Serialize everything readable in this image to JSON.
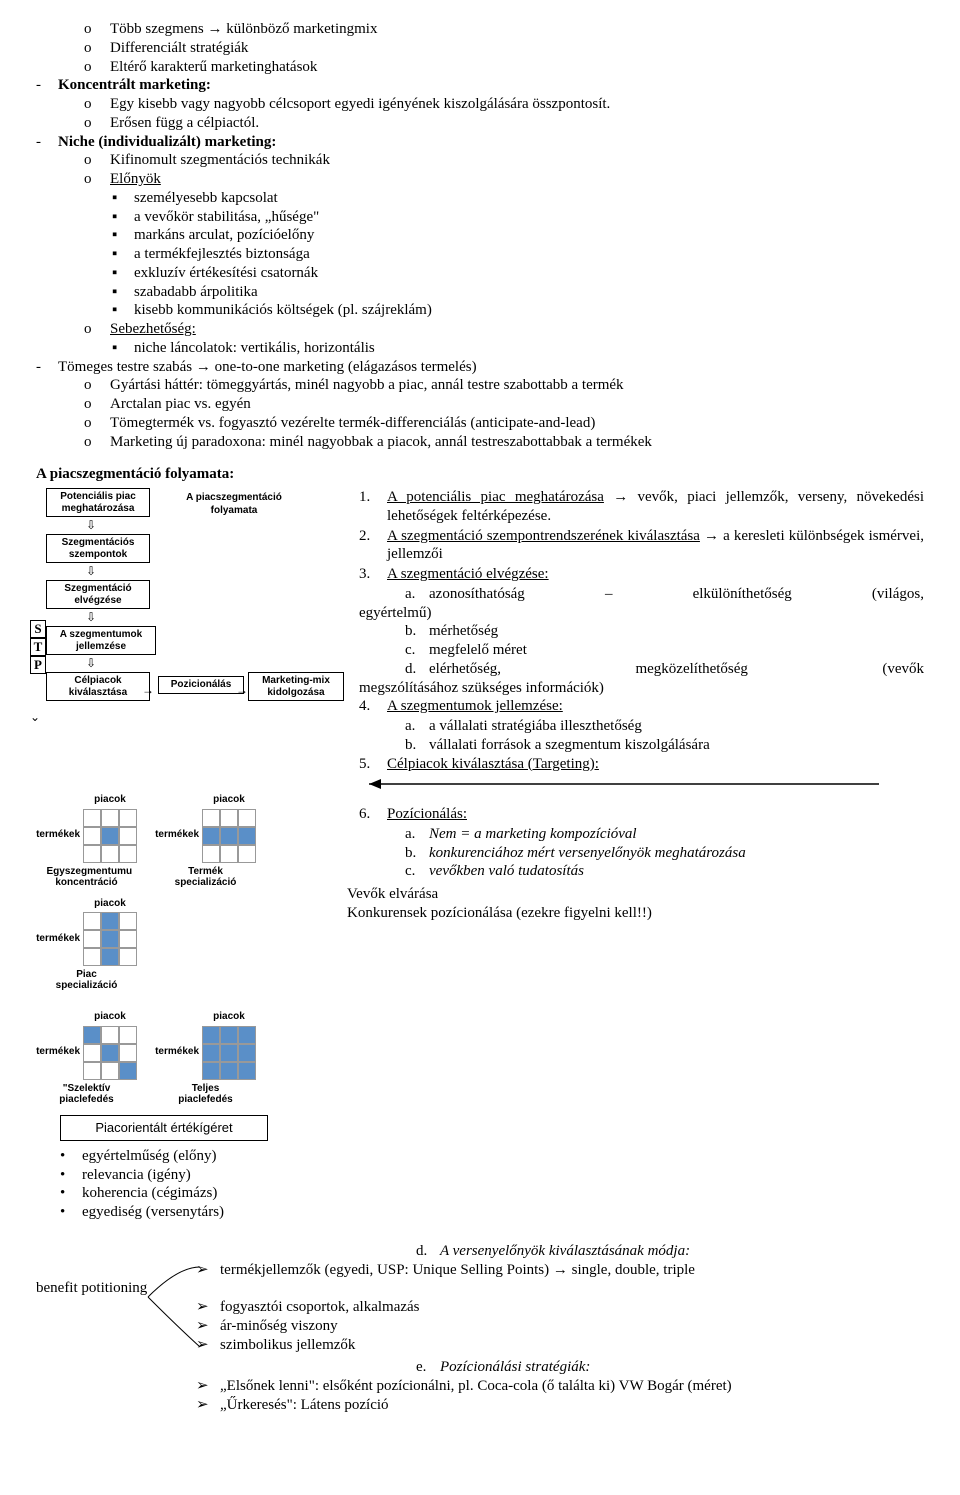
{
  "top": {
    "bullets": [
      "Több szegmens → különböző marketingmix",
      "Differenciált stratégiák",
      "Eltérő karakterű marketinghatások"
    ],
    "koncentralt": {
      "title": "Koncentrált marketing:",
      "items": [
        "Egy kisebb vagy nagyobb célcsoport egyedi igényének kiszolgálására összpontosít.",
        "Erősen függ a célpiactól."
      ]
    },
    "niche": {
      "title": "Niche (individualizált) marketing:",
      "items": [
        "Kifinomult szegmentációs technikák",
        "Előnyök"
      ],
      "elonyok": [
        "személyesebb kapcsolat",
        "a vevőkör stabilitása, „hűsége\"",
        "markáns arculat, pozícióelőny",
        "a termékfejlesztés biztonsága",
        "exkluzív értékesítési csatornák",
        "szabadabb árpolitika",
        "kisebb kommunikációs költségek (pl. szájreklám)"
      ],
      "sebez_label": "Sebezhetőség:",
      "sebez_item": "niche láncolatok: vertikális, horizontális"
    },
    "tomeges": {
      "title": "Tömeges testre szabás → one-to-one marketing (elágazásos termelés)",
      "items": [
        "Gyártási háttér: tömeggyártás, minél nagyobb a piac, annál testre szabottabb a termék",
        "Arctalan piac vs. egyén",
        "Tömegtermék vs. fogyasztó vezérelte termék-differenciálás (anticipate-and-lead)",
        "Marketing új paradoxona: minél nagyobbak a piacok, annál testreszabottabbak a termékek"
      ]
    }
  },
  "section_title": "A piacszegmentáció folyamata:",
  "flow": {
    "title": "A piacszegmentáció folyamata",
    "boxes": {
      "b1": "Potenciális piac meghatározása",
      "b2": "Szegmentációs szempontok",
      "b3": "Szegmentáció elvégzése",
      "b4": "A szegmentumok jellemzése",
      "b5": "Célpiacok kiválasztása",
      "b6": "Pozicionálás",
      "b7": "Marketing-mix kidolgozása"
    },
    "stp": {
      "s": "S",
      "t": "T",
      "p": "P"
    }
  },
  "matrices": {
    "top": "piacok",
    "left": "termékek",
    "colors": {
      "fill": "#5a8fc8",
      "border": "#999999"
    },
    "items": [
      {
        "caption": "Egyszegmentumu koncentráció",
        "grid": [
          [
            0,
            0,
            0
          ],
          [
            0,
            1,
            0
          ],
          [
            0,
            0,
            0
          ]
        ]
      },
      {
        "caption": "Termék specializáció",
        "grid": [
          [
            0,
            0,
            0
          ],
          [
            1,
            1,
            1
          ],
          [
            0,
            0,
            0
          ]
        ]
      },
      {
        "caption": "Piac specializáció",
        "grid": [
          [
            0,
            1,
            0
          ],
          [
            0,
            1,
            0
          ],
          [
            0,
            1,
            0
          ]
        ]
      },
      {
        "caption": "\"Szelektív piaclefedés",
        "grid": [
          [
            1,
            0,
            0
          ],
          [
            0,
            1,
            0
          ],
          [
            0,
            0,
            1
          ]
        ]
      },
      {
        "caption": "Teljes piaclefedés",
        "grid": [
          [
            1,
            1,
            1
          ],
          [
            1,
            1,
            1
          ],
          [
            1,
            1,
            1
          ]
        ]
      }
    ]
  },
  "promise_box": "Piacorientált értékígéret",
  "promise_bullets": [
    "egyértelműség (előny)",
    "relevancia (igény)",
    "koherencia (cégimázs)",
    "egyediség (versenytárs)"
  ],
  "steps": {
    "s1": {
      "label": "A potenciális piac meghatározása",
      "rest": " → vevők, piaci jellemzők, verseny, növekedési lehetőségek feltérképezése."
    },
    "s2": {
      "label": "A szegmentáció szempontrendszerének kiválasztása",
      "rest": " → a keresleti különbségek ismérvei, jellemzői"
    },
    "s3": {
      "label": "A szegmentáció elvégzése:",
      "a_pre": "azonosíthatóság",
      "a_mid": "–",
      "a_post": "elkülöníthetőség",
      "a_tail": "(világos,",
      "a_tail2": "egyértelmű)",
      "b": "mérhetőség",
      "c": "megfelelő méret",
      "d_pre": "elérhetőség,",
      "d_mid": "megközelíthetőség",
      "d_tail": "(vevők",
      "d2": "megszólításához szükséges információk)"
    },
    "s4": {
      "label": "A szegmentumok jellemzése:",
      "a": "a vállalati stratégiába illeszthetőség",
      "b": "vállalati források a szegmentum kiszolgálására"
    },
    "s5": {
      "label": "Célpiacok kiválasztása (Targeting):"
    },
    "s6": {
      "label": "Pozícionálás:",
      "a": "Nem = a marketing kompozícióval",
      "b": "konkurenciához mért versenyelőnyök meghatározása",
      "c": "vevőkben való tudatosítás"
    },
    "vevok": "Vevők elvárása",
    "konk": "Konkurensek pozícionálása    (ezekre figyelni kell!!)",
    "d_title": "A versenyelőnyök kiválasztásának módja:",
    "d_items": [
      "termékjellemzők (egyedi, USP: Unique Selling Points) → single, double, triple",
      "fogyasztói csoportok, alkalmazás",
      "ár-minőség viszony",
      "szimbolikus jellemzők"
    ],
    "benefit": "benefit potitioning",
    "e_title": "Pozícionálási stratégiák:",
    "e_items": [
      "„Elsőnek lenni\": elsőként pozícionálni, pl. Coca-cola (ő találta ki) VW Bogár (méret)",
      "„Űrkeresés\": Látens pozíció"
    ]
  }
}
